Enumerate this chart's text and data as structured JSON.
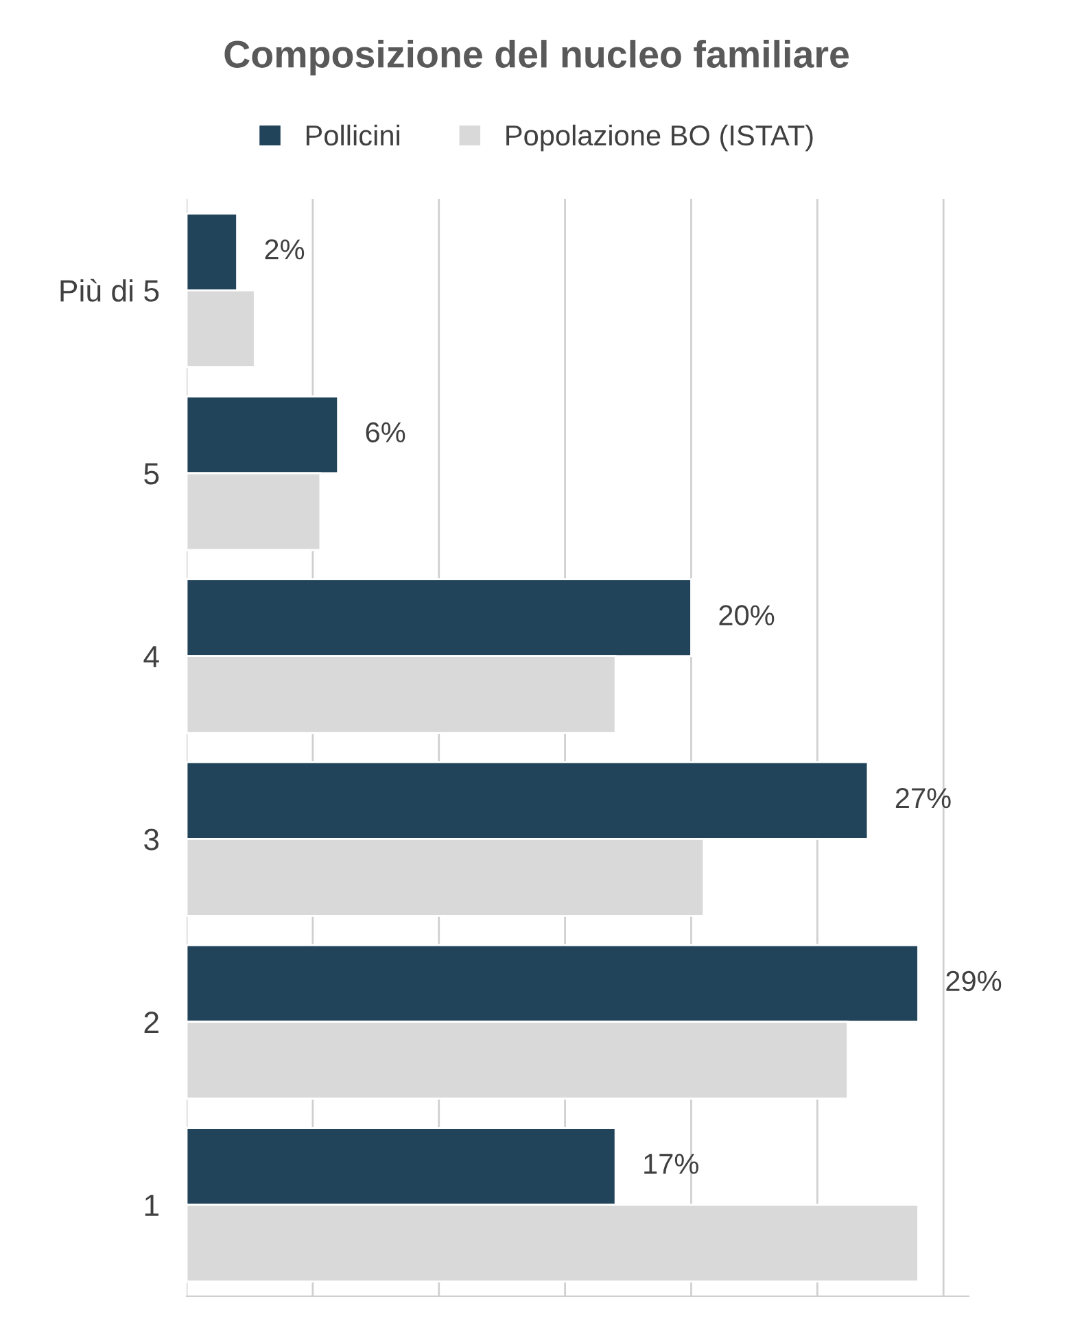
{
  "chart_data": {
    "type": "bar",
    "orientation": "horizontal",
    "title": "Composizione del nucleo familiare",
    "categories": [
      "Più di 5",
      "5",
      "4",
      "3",
      "2",
      "1"
    ],
    "series": [
      {
        "name": "Pollicini",
        "color": "#21445b",
        "values": [
          2,
          6,
          20,
          27,
          29,
          17
        ],
        "value_labels": [
          "2%",
          "6%",
          "20%",
          "27%",
          "29%",
          "17%"
        ]
      },
      {
        "name": "Popolazione BO (ISTAT)",
        "color": "#d9d9d9",
        "values": [
          2.7,
          5.3,
          17.0,
          20.5,
          26.2,
          29.0
        ]
      }
    ],
    "xlim": [
      0,
      31
    ],
    "xticks": [
      {
        "value": 0,
        "label": null
      },
      {
        "value": 5,
        "label": null
      },
      {
        "value": 10,
        "label": null
      },
      {
        "value": 15,
        "label": null
      },
      {
        "value": 20,
        "label": null
      },
      {
        "value": 25,
        "label": null
      },
      {
        "value": 30,
        "label": null
      }
    ],
    "tick_labels": "y",
    "grid": "x",
    "legend": "top"
  }
}
